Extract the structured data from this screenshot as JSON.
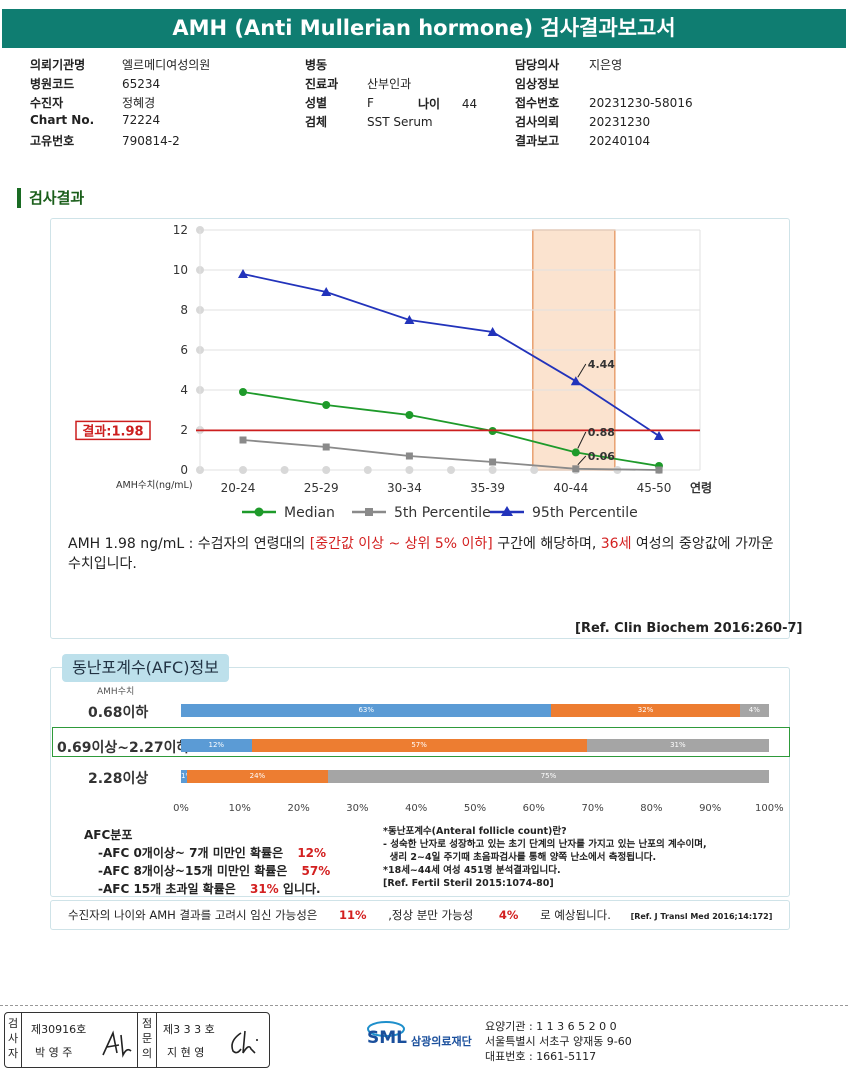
{
  "title": "AMH (Anti Mullerian hormone) 검사결과보고서",
  "info": {
    "col1": [
      {
        "label": "의뢰기관명",
        "value": "엘르메디여성의원"
      },
      {
        "label": "병원코드",
        "value": "65234"
      },
      {
        "label": "수진자",
        "value": "정혜경"
      },
      {
        "label": "Chart No.",
        "value": "72224"
      },
      {
        "label": "고유번호",
        "value": "790814-2"
      }
    ],
    "col2": [
      {
        "label": "병동",
        "value": ""
      },
      {
        "label": "진료과",
        "value": "산부인과"
      },
      {
        "label": "성별",
        "value": "F"
      },
      {
        "label": "검체",
        "value": "SST Serum"
      }
    ],
    "age_label": "나이",
    "age_value": "44",
    "col3": [
      {
        "label": "담당의사",
        "value": "지은영"
      },
      {
        "label": "임상정보",
        "value": ""
      },
      {
        "label": "접수번호",
        "value": "20231230-58016"
      },
      {
        "label": "검사의뢰",
        "value": "20231230"
      },
      {
        "label": "결과보고",
        "value": "20240104"
      }
    ]
  },
  "section_title": "검사결과",
  "chart_data": {
    "type": "line",
    "categories": [
      "20-24",
      "25-29",
      "30-34",
      "35-39",
      "40-44",
      "45-50"
    ],
    "ylim": [
      0,
      12
    ],
    "yticks": [
      "12",
      "10",
      "8",
      "6",
      "4",
      "2",
      "0"
    ],
    "ylabel": "AMH수치(ng/mL)",
    "xlabel": "연령",
    "grid": true,
    "highlight_category": "40-44",
    "result_line": {
      "value": 1.98,
      "label": "결과:1.98"
    },
    "series": [
      {
        "name": "Median",
        "color": "#1e9a2a",
        "marker": "circle",
        "values": [
          3.9,
          3.25,
          2.75,
          1.95,
          0.88,
          0.2
        ]
      },
      {
        "name": "5th Percentile",
        "color": "#8a8a8a",
        "marker": "square",
        "values": [
          1.5,
          1.15,
          0.7,
          0.4,
          0.06,
          0.0
        ]
      },
      {
        "name": "95th Percentile",
        "color": "#2233bb",
        "marker": "triangle",
        "values": [
          9.8,
          8.9,
          7.5,
          6.9,
          4.44,
          1.7
        ]
      }
    ],
    "annotations": [
      "4.44",
      "0.88",
      "0.06"
    ],
    "legend": "bottom"
  },
  "description": {
    "part1": "AMH  1.98 ng/mL : 수검자의 연령대의 ",
    "highlight1": "[중간값 이상 ~ 상위 5% 이하]",
    "part2": " 구간에 해당하며, ",
    "highlight2": "36세",
    "part3": " 여성의 중앙값에 가까운 수치입니다.",
    "ref": "[Ref. Clin Biochem 2016:260-7]"
  },
  "afc": {
    "title": "동난포계수(AFC)정보",
    "amh_label": "AMH수치",
    "colors": {
      "blue": "#5b9bd5",
      "orange": "#ed7d31",
      "gray": "#a5a5a5"
    },
    "rows": [
      {
        "label": "0.68이하",
        "blue": 63,
        "orange": 32,
        "gray": 4,
        "blue_label": "63%",
        "orange_label": "32%",
        "gray_label": "4%"
      },
      {
        "label": "0.69이상~2.27이하",
        "blue": 12,
        "orange": 57,
        "gray": 31,
        "blue_label": "12%",
        "orange_label": "57%",
        "gray_label": "31%"
      },
      {
        "label": "2.28이상",
        "blue": 1,
        "orange": 24,
        "gray": 75,
        "blue_label": "1%",
        "orange_label": "24%",
        "gray_label": "75%"
      }
    ],
    "axis": [
      "0%",
      "10%",
      "20%",
      "30%",
      "40%",
      "50%",
      "60%",
      "70%",
      "80%",
      "90%",
      "100%"
    ],
    "dist_title": "AFC분포",
    "dist": [
      {
        "text": "-AFC  0개이상~ 7개 미만인 확률은",
        "value": "12%",
        "suffix": ""
      },
      {
        "text": "-AFC  8개이상~15개 미만인 확률은",
        "value": "57%",
        "suffix": ""
      },
      {
        "text": "-AFC  15개 초과일 확률은",
        "value": "31%",
        "suffix": "입니다."
      }
    ],
    "notes": [
      "*동난포계수(Anteral follicle count)란?",
      "- 성숙한 난자로 성장하고 있는 초기 단계의 난자를 가지고 있는 난포의 계수이며,",
      "  생리 2~4일 주기때 초음파검사를 통해 양쪽 난소에서 측정됩니다.",
      "*18세~44세 여성 451명 분석결과입니다.",
      "[Ref. Fertil Steril 2015:1074-80]"
    ]
  },
  "pregnancy": {
    "text1": "수진자의  나이와 AMH 결과를 고려시 임신 가능성은",
    "value1": "11%",
    "text2": ",정상 분만 가능성",
    "value2": "4%",
    "text3": "로 예상됩니다.",
    "ref": "[Ref. J Transl Med 2016;14:172]"
  },
  "footer": {
    "stamp1_label": "검사자",
    "stamp1_no": "제30916호",
    "stamp1_name": "박 영 주",
    "stamp2_label": "점문의",
    "stamp2_no": "제3 3 3 호",
    "stamp2_name": "지 현 영",
    "logo_text": "SML",
    "org_name": "삼광의료재단",
    "line1": "요양기관 : 1 1 3 6 5 2 0 0",
    "line2": "서울특별시 서초구 양재동 9-60",
    "line3": "대표번호 : 1661-5117"
  }
}
